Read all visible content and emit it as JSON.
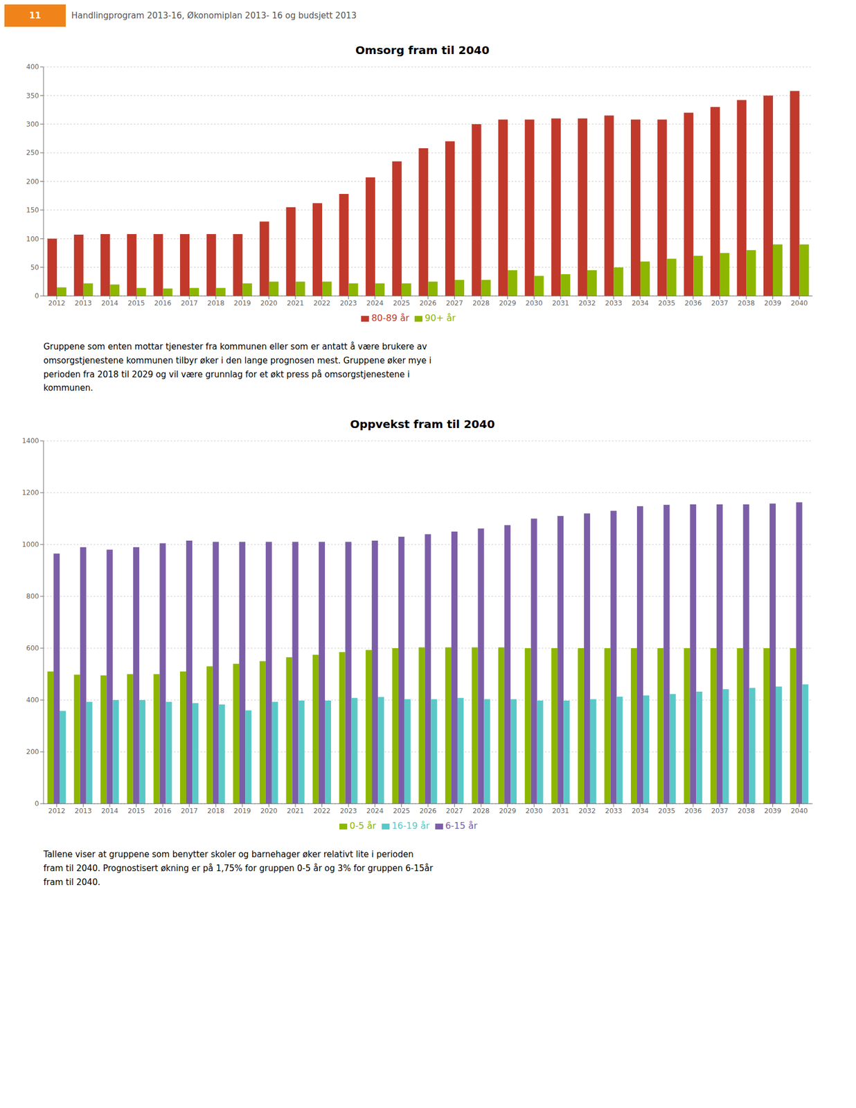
{
  "page_header": {
    "number": "11",
    "text": "Handlingprogram 2013-16, Økonomiplan 2013- 16 og budsjett 2013",
    "color": "#F0831A",
    "text_color": "#555555"
  },
  "chart_data": [
    {
      "type": "bar",
      "title": "Omsorg fram til 2040",
      "categories": [
        2012,
        2013,
        2014,
        2015,
        2016,
        2017,
        2018,
        2019,
        2020,
        2021,
        2022,
        2023,
        2024,
        2025,
        2026,
        2027,
        2028,
        2029,
        2030,
        2031,
        2032,
        2033,
        2034,
        2035,
        2036,
        2037,
        2038,
        2039,
        2040
      ],
      "series": [
        {
          "name": "80-89 år",
          "color": "#C0392B",
          "values": [
            100,
            107,
            108,
            108,
            108,
            108,
            108,
            108,
            130,
            155,
            162,
            178,
            207,
            235,
            258,
            270,
            300,
            308,
            308,
            310,
            310,
            315,
            308,
            308,
            320,
            330,
            342,
            350,
            358
          ]
        },
        {
          "name": "90+ år",
          "color": "#8DB600",
          "values": [
            15,
            22,
            20,
            14,
            13,
            14,
            14,
            22,
            25,
            25,
            25,
            22,
            22,
            22,
            25,
            28,
            28,
            45,
            35,
            38,
            45,
            50,
            60,
            65,
            70,
            75,
            80,
            90,
            90
          ]
        }
      ],
      "ylim": [
        0,
        400
      ],
      "yticks": [
        0,
        50,
        100,
        150,
        200,
        250,
        300,
        350,
        400
      ],
      "grid": true,
      "legend": "bottom",
      "annotations": [
        "Gruppene som enten mottar tjenester fra kommunen eller som er antatt å være brukere av\nomsorgstjenestene kommunen tilbyr øker i den lange prognosen mest. Gruppene øker mye i\nperioden fra 2018 til 2029 og vil være grunnlag for et økt press på omsorgstjenestene i\nkommunen."
      ]
    },
    {
      "type": "bar",
      "title": "Oppvekst fram til 2040",
      "categories": [
        2012,
        2013,
        2014,
        2015,
        2016,
        2017,
        2018,
        2019,
        2020,
        2021,
        2022,
        2023,
        2024,
        2025,
        2026,
        2027,
        2028,
        2029,
        2030,
        2031,
        2032,
        2033,
        2034,
        2035,
        2036,
        2037,
        2038,
        2039,
        2040
      ],
      "series": [
        {
          "name": "0-5 år",
          "color": "#8DB600",
          "values": [
            510,
            498,
            495,
            500,
            500,
            510,
            530,
            540,
            550,
            565,
            575,
            585,
            593,
            600,
            603,
            603,
            603,
            603,
            600,
            600,
            600,
            600,
            600,
            600,
            600,
            600,
            600,
            600,
            600
          ]
        },
        {
          "name": "6-15 år",
          "color": "#7B5EA7",
          "values": [
            965,
            990,
            980,
            990,
            1005,
            1015,
            1010,
            1010,
            1010,
            1010,
            1010,
            1010,
            1015,
            1030,
            1040,
            1050,
            1062,
            1075,
            1100,
            1110,
            1120,
            1130,
            1148,
            1153,
            1155,
            1155,
            1155,
            1158,
            1163
          ]
        },
        {
          "name": "16-19 år",
          "color": "#5BC8C8",
          "values": [
            358,
            393,
            400,
            400,
            393,
            388,
            383,
            360,
            393,
            398,
            398,
            408,
            412,
            403,
            403,
            408,
            403,
            403,
            398,
            398,
            403,
            413,
            418,
            423,
            432,
            442,
            447,
            452,
            460
          ]
        }
      ],
      "ylim": [
        0,
        1400
      ],
      "yticks": [
        0,
        200,
        400,
        600,
        800,
        1000,
        1200,
        1400
      ],
      "grid": true,
      "legend": "bottom",
      "annotations": [
        "Tallene viser at gruppene som benytter skoler og barnehager øker relativt lite i perioden\nfram til 2040. Prognostisert økning er på 1,75% for gruppen 0-5 år og 3% for gruppen 6-15år\nfram til 2040."
      ]
    }
  ]
}
